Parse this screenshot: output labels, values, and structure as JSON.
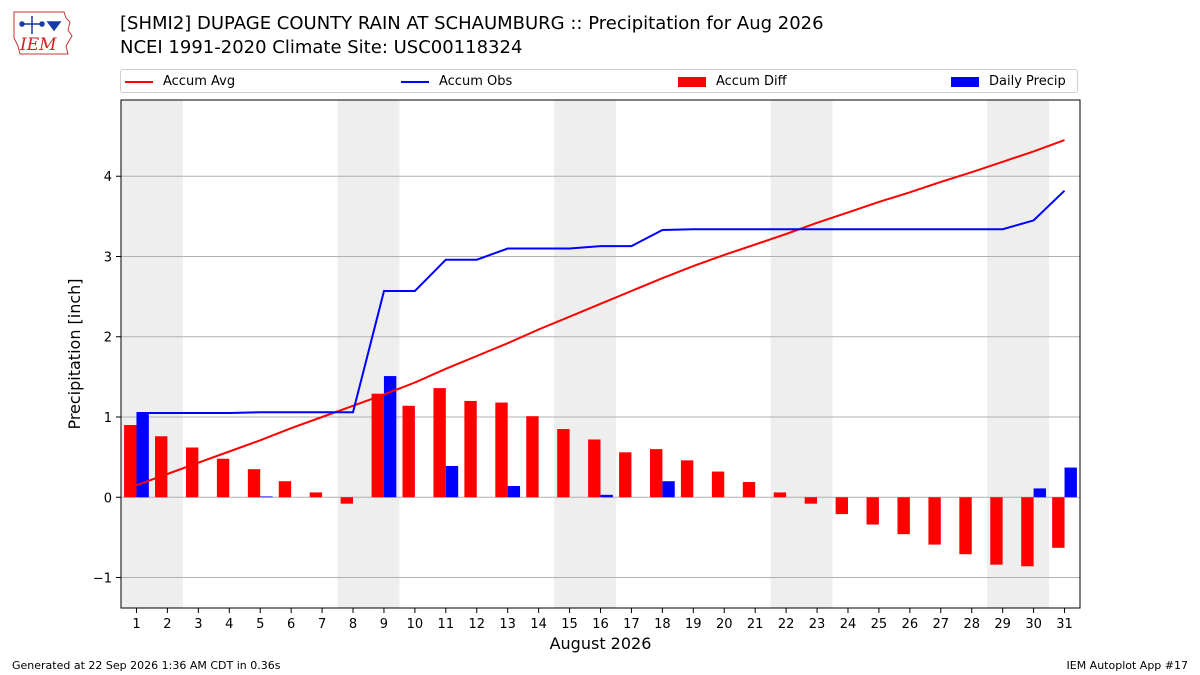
{
  "header": {
    "logo_text": "IEM",
    "title_line1": "[SHMI2] DUPAGE COUNTY RAIN AT SCHAUMBURG :: Precipitation for Aug 2026",
    "title_line2": "NCEI 1991-2020 Climate Site: USC00118324"
  },
  "footer": {
    "generated": "Generated at 22 Sep 2026 1:36 AM CDT in 0.36s",
    "app": "IEM Autoplot App #17"
  },
  "colors": {
    "avg": "#ff0000",
    "obs": "#0000ff",
    "diff": "#ff0000",
    "daily": "#0000ff",
    "weekend_shade": "#eeeeee",
    "grid": "#b0b0b0"
  },
  "chart_data": {
    "type": "bar",
    "xlabel": "August 2026",
    "ylabel": "Precipitation [inch]",
    "ylim": [
      -1.38,
      4.95
    ],
    "xlim": [
      0.5,
      31.5
    ],
    "yticks": [
      -1,
      0,
      1,
      2,
      3,
      4
    ],
    "ytick_labels": [
      "−1",
      "0",
      "1",
      "2",
      "3",
      "4"
    ],
    "grid": "horizontal",
    "legend_placement": "top",
    "days": [
      1,
      2,
      3,
      4,
      5,
      6,
      7,
      8,
      9,
      10,
      11,
      12,
      13,
      14,
      15,
      16,
      17,
      18,
      19,
      20,
      21,
      22,
      23,
      24,
      25,
      26,
      27,
      28,
      29,
      30,
      31
    ],
    "weekend_ranges": [
      [
        1,
        2
      ],
      [
        8,
        9
      ],
      [
        15,
        16
      ],
      [
        22,
        23
      ],
      [
        29,
        30
      ]
    ],
    "series": [
      {
        "name": "Accum Avg",
        "kind": "line",
        "values": [
          0.15,
          0.29,
          0.43,
          0.57,
          0.71,
          0.86,
          1.0,
          1.14,
          1.28,
          1.43,
          1.6,
          1.76,
          1.92,
          2.09,
          2.25,
          2.41,
          2.57,
          2.73,
          2.88,
          3.02,
          3.15,
          3.28,
          3.42,
          3.55,
          3.68,
          3.8,
          3.93,
          4.05,
          4.18,
          4.31,
          4.45
        ]
      },
      {
        "name": "Accum Obs",
        "kind": "line",
        "values": [
          1.05,
          1.05,
          1.05,
          1.05,
          1.06,
          1.06,
          1.06,
          1.06,
          2.57,
          2.57,
          2.96,
          2.96,
          3.1,
          3.1,
          3.1,
          3.13,
          3.13,
          3.33,
          3.34,
          3.34,
          3.34,
          3.34,
          3.34,
          3.34,
          3.34,
          3.34,
          3.34,
          3.34,
          3.34,
          3.45,
          3.82
        ]
      },
      {
        "name": "Accum Diff",
        "kind": "bar",
        "values": [
          0.9,
          0.76,
          0.62,
          0.48,
          0.35,
          0.2,
          0.06,
          -0.08,
          1.29,
          1.14,
          1.36,
          1.2,
          1.18,
          1.01,
          0.85,
          0.72,
          0.56,
          0.6,
          0.46,
          0.32,
          0.19,
          0.06,
          -0.08,
          -0.21,
          -0.34,
          -0.46,
          -0.59,
          -0.71,
          -0.84,
          -0.86,
          -0.63
        ]
      },
      {
        "name": "Daily Precip",
        "kind": "bar",
        "values": [
          1.05,
          0,
          0,
          0,
          0.01,
          0,
          0,
          0,
          1.51,
          0,
          0.39,
          0,
          0.14,
          0,
          0,
          0.03,
          0,
          0.2,
          0,
          0,
          0,
          0,
          0,
          0,
          0,
          0,
          0,
          0,
          0,
          0.11,
          0.37
        ]
      }
    ]
  }
}
